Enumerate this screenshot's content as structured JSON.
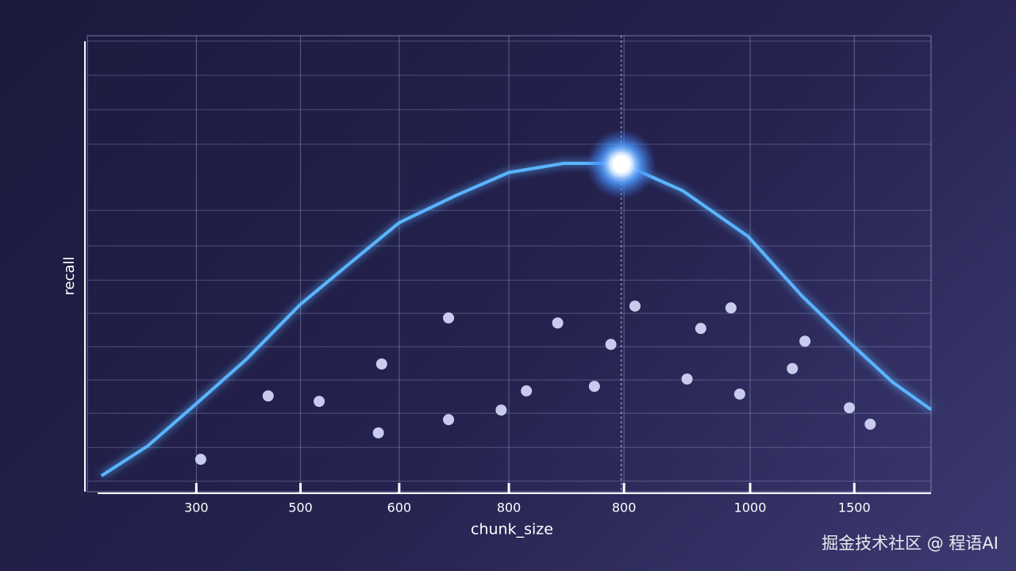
{
  "chart_data": {
    "type": "line",
    "xlabel": "chunk_size",
    "ylabel": "recall",
    "xlim": [
      120,
      1640
    ],
    "ylim": [
      0,
      1
    ],
    "xticks": [
      {
        "value": 300,
        "label": "300"
      },
      {
        "value": 490,
        "label": "500"
      },
      {
        "value": 670,
        "label": "600"
      },
      {
        "value": 870,
        "label": "800"
      },
      {
        "value": 1080,
        "label": "800"
      },
      {
        "value": 1310,
        "label": "1000"
      },
      {
        "value": 1500,
        "label": "1500"
      }
    ],
    "ygrid": [
      0.023,
      0.097,
      0.172,
      0.245,
      0.318,
      0.391,
      0.464,
      0.539,
      0.617,
      0.762,
      0.838,
      0.913,
      0.988
    ],
    "grid": true,
    "curve": {
      "color": "#5ab4ff",
      "x": [
        127,
        211,
        297,
        391,
        489,
        579,
        670,
        774,
        870,
        970,
        1075,
        1187,
        1306,
        1404,
        1498,
        1570,
        1640
      ],
      "values": [
        0.035,
        0.1,
        0.19,
        0.29,
        0.41,
        0.5,
        0.59,
        0.65,
        0.7,
        0.72,
        0.72,
        0.66,
        0.56,
        0.43,
        0.32,
        0.24,
        0.18
      ]
    },
    "points": {
      "color": "#c8cbee",
      "x": [
        308,
        431,
        524,
        632,
        638,
        760,
        760,
        856,
        902,
        959,
        1026,
        1056,
        1100,
        1195,
        1220,
        1275,
        1291,
        1387,
        1410,
        1491,
        1529
      ],
      "values": [
        0.071,
        0.21,
        0.198,
        0.129,
        0.28,
        0.381,
        0.158,
        0.179,
        0.221,
        0.37,
        0.231,
        0.323,
        0.407,
        0.247,
        0.358,
        0.403,
        0.214,
        0.27,
        0.33,
        0.184,
        0.148
      ]
    },
    "highlight": {
      "x": 1075,
      "y": 0.718
    },
    "watermark": "掘金技术社区 @ 程语AI"
  }
}
